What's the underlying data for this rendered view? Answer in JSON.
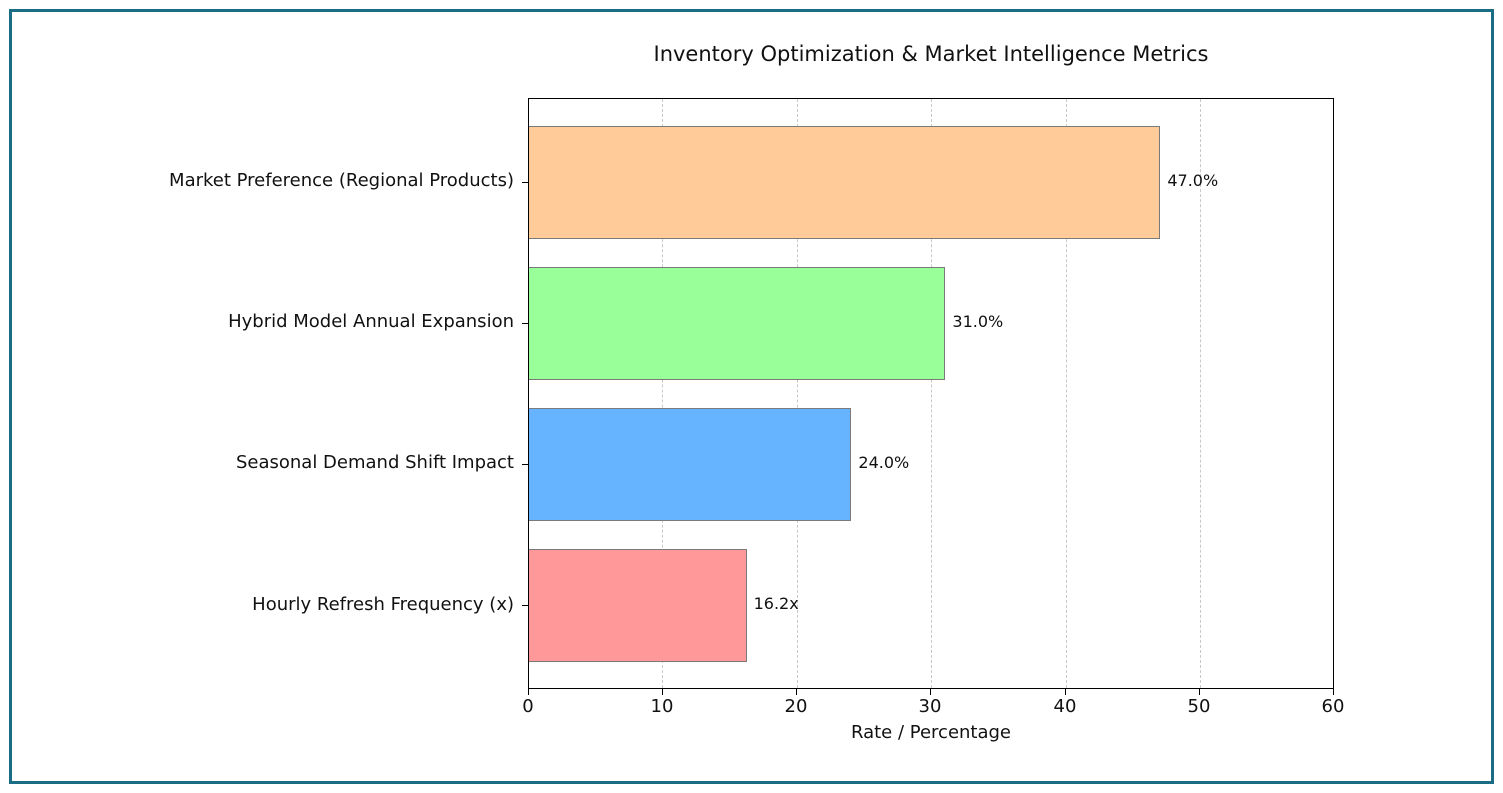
{
  "chart_data": {
    "type": "bar",
    "orientation": "horizontal",
    "title": "Inventory Optimization & Market Intelligence Metrics",
    "xlabel": "Rate / Percentage",
    "ylabel": "",
    "xlim": [
      0,
      60
    ],
    "xticks": [
      "0",
      "10",
      "20",
      "30",
      "40",
      "50",
      "60"
    ],
    "grid": {
      "x": true,
      "y": false,
      "style": "dashed"
    },
    "legend": null,
    "categories": [
      "Market Preference (Regional Products)",
      "Hybrid Model Annual Expansion",
      "Seasonal Demand Shift Impact",
      "Hourly Refresh Frequency (x)"
    ],
    "values": [
      47.0,
      31.0,
      24.0,
      16.2
    ],
    "value_labels": [
      "47.0%",
      "31.0%",
      "24.0%",
      "16.2x"
    ],
    "colors": [
      "#ffcc99",
      "#99ff99",
      "#66b3ff",
      "#ff9999"
    ]
  },
  "frame": {
    "border_color": "#1b6d85"
  }
}
